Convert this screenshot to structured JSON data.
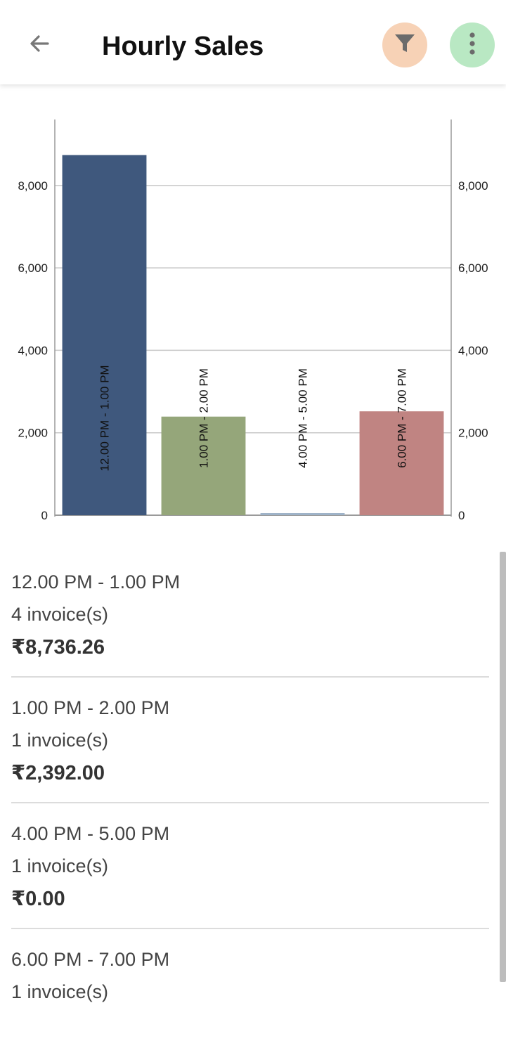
{
  "appbar": {
    "title": "Hourly Sales",
    "back_icon": "arrow-left-icon",
    "filter_icon": "filter-icon",
    "more_icon": "more-vert-icon",
    "filter_bg": "#f7d2b6",
    "more_bg": "#b9e8c3"
  },
  "chart_data": {
    "type": "bar",
    "categories": [
      "12.00 PM - 1.00 PM",
      "1.00 PM - 2.00 PM",
      "4.00 PM - 5.00 PM",
      "6.00 PM - 7.00 PM"
    ],
    "values": [
      8736.26,
      2392.0,
      0,
      2520
    ],
    "colors": [
      "#3f587d",
      "#95a67a",
      "#9fb3c8",
      "#c08482"
    ],
    "ylim": [
      0,
      9600
    ],
    "yticks": [
      "0",
      "2,000",
      "4,000",
      "6,000",
      "8,000"
    ],
    "ytick_values": [
      0,
      2000,
      4000,
      6000,
      8000
    ],
    "grid": true,
    "dual_axis": true
  },
  "list": {
    "items": [
      {
        "slot": "12.00 PM - 1.00 PM",
        "invoices": "4 invoice(s)",
        "amount": "₹8,736.26"
      },
      {
        "slot": "1.00 PM - 2.00 PM",
        "invoices": "1 invoice(s)",
        "amount": "₹2,392.00"
      },
      {
        "slot": "4.00 PM - 5.00 PM",
        "invoices": "1 invoice(s)",
        "amount": "₹0.00"
      },
      {
        "slot": "6.00 PM - 7.00 PM",
        "invoices": "1 invoice(s)",
        "amount": ""
      }
    ]
  }
}
